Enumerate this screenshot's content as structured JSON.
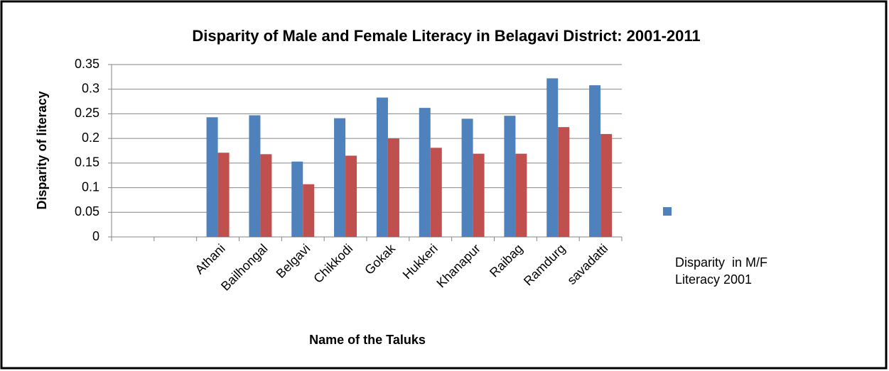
{
  "chart_data": {
    "type": "bar",
    "title": "Disparity of Male and Female Literacy in Belagavi District: 2001-2011",
    "x_label": "Name of the Taluks",
    "y_label": "Disparity of literacy",
    "categories": [
      null,
      null,
      "Athani",
      "Bailhongal",
      "Belgavi",
      "Chikkodi",
      "Gokak",
      "Hukkeri",
      "Khanapur",
      "Raibag",
      "Ramdurg",
      "savadatti"
    ],
    "series": [
      {
        "name": "Disparity  in M/F Literacy 2001",
        "color": "#4f81bd",
        "values": [
          null,
          null,
          0.243,
          0.247,
          0.153,
          0.241,
          0.283,
          0.262,
          0.24,
          0.246,
          0.322,
          0.308
        ]
      },
      {
        "color": "#c0504d",
        "values": [
          null,
          null,
          0.171,
          0.168,
          0.107,
          0.165,
          0.2,
          0.181,
          0.169,
          0.169,
          0.223,
          0.209
        ]
      }
    ],
    "ylim": [
      0,
      0.35
    ],
    "yticks": [
      0,
      0.05,
      0.1,
      0.15,
      0.2,
      0.25,
      0.3,
      0.35
    ],
    "grid": true,
    "legend": "right"
  }
}
